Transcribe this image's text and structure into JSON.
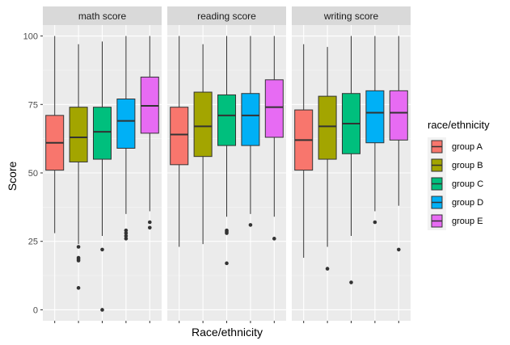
{
  "chart_data": {
    "type": "boxplot",
    "xlabel": "Race/ethnicity",
    "ylabel": "Score",
    "ylim": [
      -4,
      104
    ],
    "yticks": [
      0,
      25,
      50,
      75,
      100
    ],
    "legend": {
      "title": "race/ethnicity",
      "position": "right",
      "entries": [
        {
          "label": "group A",
          "color": "#F8766D"
        },
        {
          "label": "group B",
          "color": "#A3A500"
        },
        {
          "label": "group C",
          "color": "#00BF7D"
        },
        {
          "label": "group D",
          "color": "#00B0F6"
        },
        {
          "label": "group E",
          "color": "#E76BF3"
        }
      ]
    },
    "panels": [
      {
        "title": "math score",
        "boxes": [
          {
            "group": "group A",
            "min": 28,
            "q1": 51,
            "median": 61,
            "q3": 71,
            "max": 100,
            "outliers": []
          },
          {
            "group": "group B",
            "min": 24,
            "q1": 54,
            "median": 63,
            "q3": 74,
            "max": 97,
            "outliers": [
              23,
              19,
              18.5,
              18,
              8
            ]
          },
          {
            "group": "group C",
            "min": 27,
            "q1": 55,
            "median": 65,
            "q3": 74,
            "max": 98,
            "outliers": [
              22,
              0
            ]
          },
          {
            "group": "group D",
            "min": 35,
            "q1": 59,
            "median": 69,
            "q3": 77,
            "max": 100,
            "outliers": [
              29,
              28,
              27,
              26
            ]
          },
          {
            "group": "group E",
            "min": 36,
            "q1": 64.5,
            "median": 74.5,
            "q3": 85,
            "max": 100,
            "outliers": [
              32,
              30
            ]
          }
        ]
      },
      {
        "title": "reading score",
        "boxes": [
          {
            "group": "group A",
            "min": 23,
            "q1": 53,
            "median": 64,
            "q3": 74,
            "max": 100,
            "outliers": []
          },
          {
            "group": "group B",
            "min": 24,
            "q1": 56,
            "median": 67,
            "q3": 79.5,
            "max": 97,
            "outliers": []
          },
          {
            "group": "group C",
            "min": 34,
            "q1": 60,
            "median": 71,
            "q3": 78.5,
            "max": 100,
            "outliers": [
              29,
              28.5,
              28,
              17
            ]
          },
          {
            "group": "group D",
            "min": 35,
            "q1": 60,
            "median": 71,
            "q3": 79,
            "max": 100,
            "outliers": [
              31
            ]
          },
          {
            "group": "group E",
            "min": 34,
            "q1": 63,
            "median": 74,
            "q3": 84,
            "max": 100,
            "outliers": [
              26
            ]
          }
        ]
      },
      {
        "title": "writing score",
        "boxes": [
          {
            "group": "group A",
            "min": 19,
            "q1": 51,
            "median": 62,
            "q3": 73,
            "max": 97,
            "outliers": []
          },
          {
            "group": "group B",
            "min": 23,
            "q1": 55,
            "median": 67,
            "q3": 78,
            "max": 96,
            "outliers": [
              15
            ]
          },
          {
            "group": "group C",
            "min": 27,
            "q1": 57,
            "median": 68,
            "q3": 79,
            "max": 100,
            "outliers": [
              10
            ]
          },
          {
            "group": "group D",
            "min": 36,
            "q1": 61,
            "median": 72,
            "q3": 80,
            "max": 100,
            "outliers": [
              32
            ]
          },
          {
            "group": "group E",
            "min": 38,
            "q1": 62,
            "median": 72,
            "q3": 80,
            "max": 100,
            "outliers": [
              22
            ]
          }
        ]
      }
    ]
  }
}
